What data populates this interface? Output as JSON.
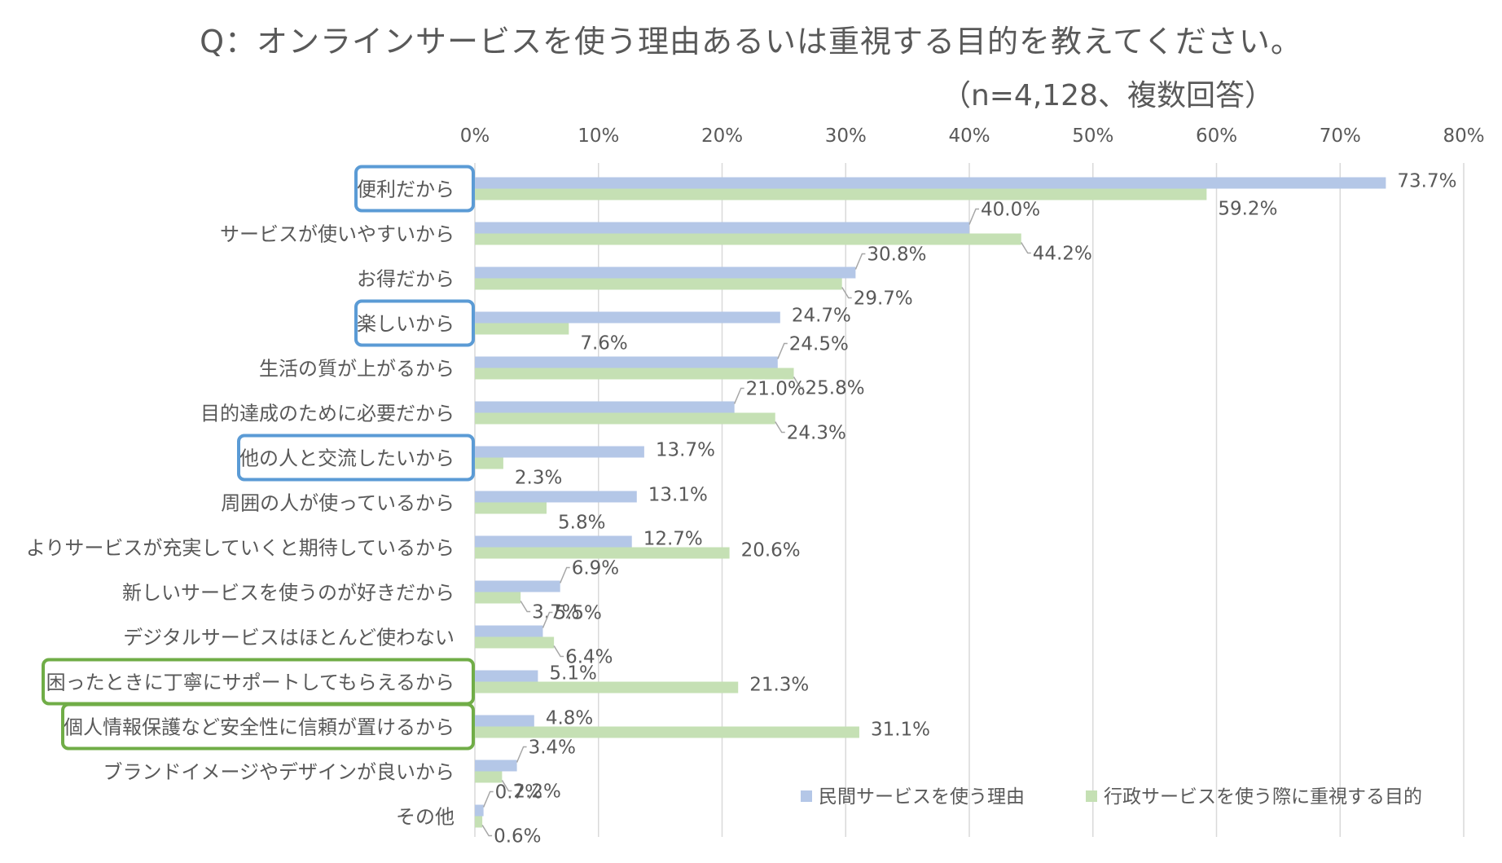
{
  "chart_data": {
    "type": "bar",
    "orientation": "horizontal",
    "title": "Q：オンラインサービスを使う理由あるいは重視する目的を教えてください。",
    "subtitle": "（n=4,128、複数回答）",
    "xlim": [
      0,
      80
    ],
    "x_ticks": [
      "0%",
      "10%",
      "20%",
      "30%",
      "40%",
      "50%",
      "60%",
      "70%",
      "80%"
    ],
    "x_tick_values": [
      0,
      10,
      20,
      30,
      40,
      50,
      60,
      70,
      80
    ],
    "grid": true,
    "legend_position": "bottom-right",
    "categories": [
      "便利だから",
      "サービスが使いやすいから",
      "お得だから",
      "楽しいから",
      "生活の質が上がるから",
      "目的達成のために必要だから",
      "他の人と交流したいから",
      "周囲の人が使っているから",
      "よりサービスが充実していくと期待しているから",
      "新しいサービスを使うのが好きだから",
      "デジタルサービスはほとんど使わない",
      "困ったときに丁寧にサポートしてもらえるから",
      "個人情報保護など安全性に信頼が置けるから",
      "ブランドイメージやデザインが良いから",
      "その他"
    ],
    "highlight": {
      "blue": [
        "便利だから",
        "楽しいから",
        "他の人と交流したいから"
      ],
      "green": [
        "困ったときに丁寧にサポートしてもらえるから",
        "個人情報保護など安全性に信頼が置けるから"
      ]
    },
    "series": [
      {
        "name": "民間サービスを使う理由",
        "color": "#b4c7e7",
        "values": [
          73.7,
          40.0,
          30.8,
          24.7,
          24.5,
          21.0,
          13.7,
          13.1,
          12.7,
          6.9,
          5.5,
          5.1,
          4.8,
          3.4,
          0.7
        ],
        "labels": [
          "73.7%",
          "40.0%",
          "30.8%",
          "24.7%",
          "24.5%",
          "21.0%",
          "13.7%",
          "13.1%",
          "12.7%",
          "6.9%",
          "5.5%",
          "5.1%",
          "4.8%",
          "3.4%",
          "0.7%"
        ]
      },
      {
        "name": "行政サービスを使う際に重視する目的",
        "color": "#c5e0b4",
        "values": [
          59.2,
          44.2,
          29.7,
          7.6,
          25.8,
          24.3,
          2.3,
          5.8,
          20.6,
          3.7,
          6.4,
          21.3,
          31.1,
          2.2,
          0.6
        ],
        "labels": [
          "59.2%",
          "44.2%",
          "29.7%",
          "7.6%",
          "25.8%",
          "24.3%",
          "2.3%",
          "5.8%",
          "20.6%",
          "3.7%",
          "6.4%",
          "21.3%",
          "31.1%",
          "2.2%",
          "0.6%"
        ]
      }
    ],
    "colors": {
      "grid": "#d9d9d9",
      "text": "#595959",
      "highlight_blue": "#5b9bd5",
      "highlight_green": "#70ad47"
    }
  }
}
